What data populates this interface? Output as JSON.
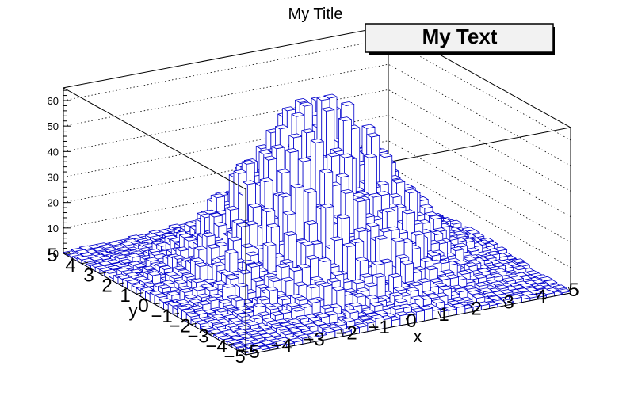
{
  "title": "My Title",
  "text_box": {
    "label": "My Text"
  },
  "colors": {
    "bar_fill": "#ffffff",
    "bar_edge": "#0000cc",
    "frame": "#000000",
    "grid": "#000000"
  },
  "chart_data": {
    "type": "lego",
    "title": "My Title",
    "xlabel": "x",
    "ylabel": "y",
    "zlabel": "",
    "xlim": [
      -5,
      5
    ],
    "ylim": [
      -5,
      5
    ],
    "zlim": [
      0,
      65
    ],
    "x_ticks": [
      "−5",
      "−4",
      "−3",
      "−2",
      "−1",
      "0",
      "1",
      "2",
      "3",
      "4",
      "5"
    ],
    "y_ticks": [
      "−5",
      "−4",
      "−3",
      "−2",
      "−1",
      "0",
      "1",
      "2",
      "3",
      "4",
      "5"
    ],
    "z_ticks": [
      "0",
      "10",
      "20",
      "30",
      "40",
      "50",
      "60"
    ],
    "z_tick_values": [
      0,
      10,
      20,
      30,
      40,
      50,
      60
    ],
    "grid": true,
    "bins": {
      "nx": 40,
      "ny": 40
    },
    "distribution": "2D gaussian (mean 0, sigma 2), peak about 55 counts near (0,0)",
    "peak_value": 55
  }
}
